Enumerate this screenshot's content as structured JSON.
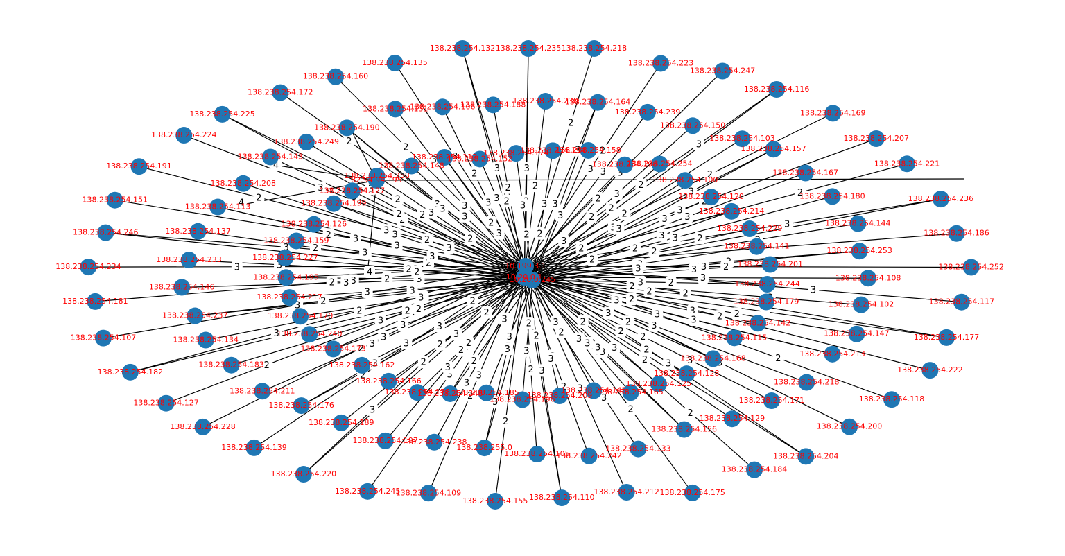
{
  "colors": {
    "node": "#1f77b4",
    "label": "#ff0000",
    "edge": "#000000",
    "edge_label": "#000000",
    "background": "#ffffff"
  },
  "hubs": [
    "10.199.3.1",
    "10.20.0.1",
    "10.20.0.245"
  ],
  "bridges": [
    "82.94.94.195"
  ],
  "nodes": [
    "138.238.254.235",
    "138.238.254.230",
    "138.238.254.194",
    "138.238.254.218",
    "138.238.254.164",
    "138.238.254.158",
    "138.238.254.223",
    "138.238.254.239",
    "138.238.254.198",
    "138.238.254.247",
    "138.238.254.150",
    "138.238.254.254",
    "138.238.254.116",
    "138.238.254.103",
    "138.238.254.100",
    "138.238.254.169",
    "138.238.254.157",
    "138.238.254.120",
    "138.238.254.207",
    "138.238.254.167",
    "138.238.254.214",
    "138.238.254.221",
    "138.238.254.180",
    "138.238.254.229",
    "138.238.254.236",
    "138.238.254.144",
    "138.238.254.141",
    "138.238.254.186",
    "138.238.254.253",
    "138.238.254.201",
    "138.238.254.252",
    "138.238.254.108",
    "138.238.254.244",
    "138.238.254.117",
    "138.238.254.102",
    "138.238.254.179",
    "138.238.254.177",
    "138.238.254.147",
    "138.238.254.142",
    "138.238.254.222",
    "138.238.254.213",
    "138.238.254.115",
    "138.238.254.118",
    "138.238.254.218",
    "138.238.254.168",
    "138.238.254.200",
    "138.238.254.171",
    "138.238.254.128",
    "138.238.254.204",
    "138.238.254.129",
    "138.238.254.125",
    "138.238.254.184",
    "138.238.254.156",
    "138.238.254.165",
    "138.238.254.175",
    "138.238.254.133",
    "138.238.254.145",
    "138.238.254.212",
    "138.238.254.242",
    "138.238.254.209",
    "138.238.254.110",
    "138.238.254.105",
    "138.238.254.196",
    "138.238.254.155",
    "138.238.255.0",
    "138.238.254.185",
    "138.238.254.109",
    "138.238.254.238",
    "138.238.254.248",
    "138.238.254.245",
    "138.238.254.197",
    "138.238.254.178",
    "138.238.254.220",
    "138.238.254.189",
    "138.238.254.166",
    "138.238.254.139",
    "138.238.254.176",
    "138.238.254.162",
    "138.238.254.228",
    "138.238.254.211",
    "138.238.254.173",
    "138.238.254.127",
    "138.238.254.183",
    "138.238.254.240",
    "138.238.254.182",
    "138.238.254.134",
    "138.238.254.170",
    "138.238.254.107",
    "138.238.254.237",
    "138.238.254.217",
    "138.238.254.181",
    "138.238.254.146",
    "138.238.254.195",
    "138.238.254.234",
    "138.238.254.233",
    "138.238.254.227",
    "138.238.254.246",
    "138.238.254.137",
    "138.238.254.159",
    "138.238.254.151",
    "138.238.254.113",
    "138.238.254.126",
    "138.238.254.191",
    "138.238.254.208",
    "138.238.254.199",
    "138.238.254.224",
    "138.238.254.143",
    "138.238.254.127",
    "138.238.254.225",
    "138.238.254.249",
    "138.238.254.258",
    "138.238.254.172",
    "138.238.254.190",
    "138.238.254.148",
    "138.238.254.160",
    "138.238.254.131",
    "138.238.254.112",
    "138.238.254.135",
    "138.238.254.106",
    "138.238.254.152",
    "138.238.254.132",
    "138.238.254.188",
    "138.238.254.174"
  ],
  "edge_weights": [
    "3",
    "2",
    "3",
    "2",
    "3",
    "3",
    "2",
    "3",
    "2",
    "3",
    "3",
    "2",
    "3",
    "2",
    "3",
    "2",
    "3",
    "3",
    "2",
    "3",
    "3",
    "2",
    "3",
    "2",
    "3",
    "2",
    "3",
    "3",
    "2",
    "3",
    "2",
    "3",
    "2",
    "3",
    "3",
    "2",
    "3",
    "2",
    "3",
    "2",
    "3",
    "3",
    "2",
    "3",
    "2",
    "3",
    "3",
    "2",
    "3",
    "2",
    "3",
    "2",
    "3",
    "3",
    "2",
    "3",
    "2",
    "3",
    "2",
    "3"
  ],
  "bridge_weights": [
    "4",
    "4",
    "4",
    "4"
  ]
}
